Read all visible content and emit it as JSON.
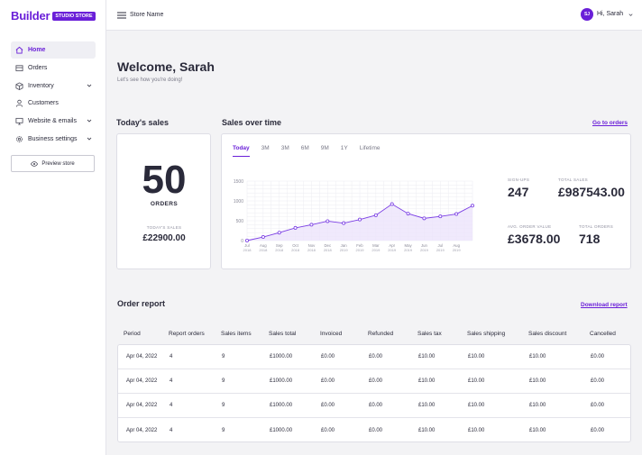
{
  "logo": {
    "text": "Builder",
    "badge": "STUDIO STORE"
  },
  "sidebar": {
    "items": [
      {
        "label": "Home",
        "icon": "home-icon",
        "active": true
      },
      {
        "label": "Orders",
        "icon": "orders-icon"
      },
      {
        "label": "Inventory",
        "icon": "inventory-icon",
        "expandable": true
      },
      {
        "label": "Customers",
        "icon": "customers-icon"
      },
      {
        "label": "Website & emails",
        "icon": "monitor-icon",
        "expandable": true
      },
      {
        "label": "Business settings",
        "icon": "gear-icon",
        "expandable": true
      }
    ],
    "preview_label": "Preview store"
  },
  "header": {
    "store_name": "Store Name",
    "avatar_initials": "SJ",
    "user_greeting": "Hi, Sarah"
  },
  "welcome": {
    "title": "Welcome, Sarah",
    "subtitle": "Let's see how you're doing!"
  },
  "todays_sales": {
    "title": "Today's sales",
    "count": "50",
    "count_label": "ORDERS",
    "sales_label": "TODAY'S SALES",
    "sales_value": "£22900.00"
  },
  "sales_over_time": {
    "title": "Sales over time",
    "link": "Go to orders",
    "tabs": [
      "Today",
      "3M",
      "3M",
      "6M",
      "9M",
      "1Y",
      "Lifetime"
    ],
    "active_tab": 0,
    "stats": [
      {
        "label": "SIGN-UPS",
        "value": "247"
      },
      {
        "label": "TOTAL SALES",
        "value": "£987543.00"
      },
      {
        "label": "AVG. ORDER VALUE",
        "value": "£3678.00"
      },
      {
        "label": "TOTAL ORDERS",
        "value": "718"
      }
    ]
  },
  "chart_data": {
    "type": "area",
    "x": [
      "Jul 2018",
      "Aug 2018",
      "Sep 2018",
      "Oct 2018",
      "Nov 2018",
      "Dec 2018",
      "Jan 2019",
      "Feb 2019",
      "Mar 2019",
      "Apr 2019",
      "May 2019",
      "Jun 2019",
      "Jul 2019",
      "Aug 2019",
      "Sep 2019"
    ],
    "x_tick_month": [
      "Jul",
      "Aug",
      "Sep",
      "Oct",
      "Nov",
      "Dec",
      "Jan",
      "Feb",
      "Mar",
      "Apr",
      "May",
      "Jun",
      "Jul",
      "Aug"
    ],
    "x_tick_year": [
      "2018",
      "2018",
      "2018",
      "2018",
      "2018",
      "2018",
      "2019",
      "2019",
      "2019",
      "2019",
      "2019",
      "2019",
      "2019",
      "2019"
    ],
    "y_ticks": [
      "0",
      "500",
      "1000",
      "1500"
    ],
    "values": [
      0,
      90,
      200,
      320,
      400,
      490,
      440,
      530,
      640,
      920,
      680,
      560,
      610,
      670,
      880
    ],
    "ylim": [
      0,
      1500
    ],
    "grid": true,
    "color": "#7b3fe4"
  },
  "order_report": {
    "title": "Order report",
    "link": "Download report",
    "columns": [
      "Period",
      "Report orders",
      "Sales items",
      "Sales total",
      "Invoiced",
      "Refunded",
      "Sales tax",
      "Sales shipping",
      "Sales discount",
      "Cancelled"
    ],
    "rows": [
      [
        "Apr 04, 2022",
        "4",
        "9",
        "£1000.00",
        "£0.00",
        "£0.00",
        "£10.00",
        "£10.00",
        "£10.00",
        "£0.00"
      ],
      [
        "Apr 04, 2022",
        "4",
        "9",
        "£1000.00",
        "£0.00",
        "£0.00",
        "£10.00",
        "£10.00",
        "£10.00",
        "£0.00"
      ],
      [
        "Apr 04, 2022",
        "4",
        "9",
        "£1000.00",
        "£0.00",
        "£0.00",
        "£10.00",
        "£10.00",
        "£10.00",
        "£0.00"
      ],
      [
        "Apr 04, 2022",
        "4",
        "9",
        "£1000.00",
        "£0.00",
        "£0.00",
        "£10.00",
        "£10.00",
        "£10.00",
        "£0.00"
      ]
    ]
  },
  "colors": {
    "accent": "#6a1fd8",
    "chart_line": "#7b3fe4",
    "chart_fill": "#ece4fb"
  }
}
